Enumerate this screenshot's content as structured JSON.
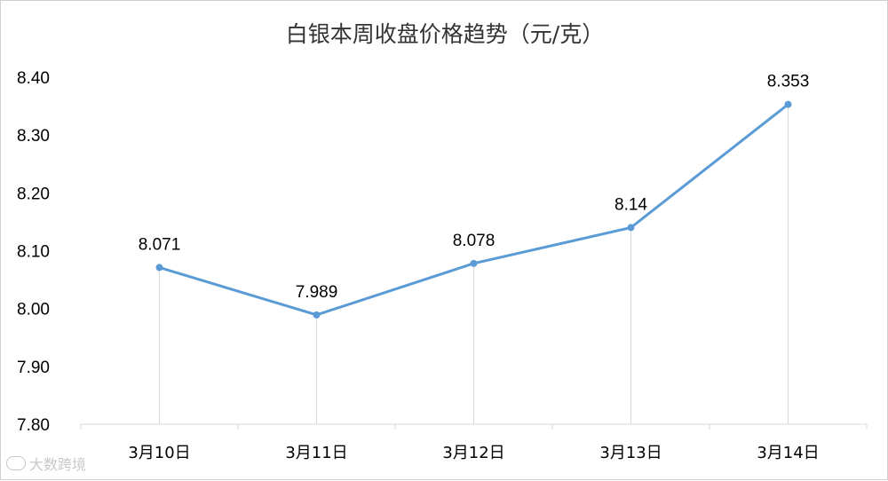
{
  "chart_data": {
    "type": "line",
    "title": "白银本周收盘价格趋势（元/克）",
    "xlabel": "",
    "ylabel": "",
    "categories": [
      "3月10日",
      "3月11日",
      "3月12日",
      "3月13日",
      "3月14日"
    ],
    "series": [
      {
        "values": [
          8.071,
          7.989,
          8.078,
          8.14,
          8.353
        ],
        "data_labels": [
          "8.071",
          "7.989",
          "8.078",
          "8.14",
          "8.353"
        ],
        "color": "#5B9BD5"
      }
    ],
    "ylim": [
      7.8,
      8.4
    ],
    "yticks": [
      "7.80",
      "7.90",
      "8.00",
      "8.10",
      "8.20",
      "8.30",
      "8.40"
    ],
    "grid": false,
    "drop_lines": true,
    "legend": "none"
  },
  "watermark": {
    "text": "大数跨境"
  },
  "colors": {
    "line": "#5B9BD5",
    "drop_line": "#d9d9d9",
    "axis": "#d9d9d9"
  }
}
